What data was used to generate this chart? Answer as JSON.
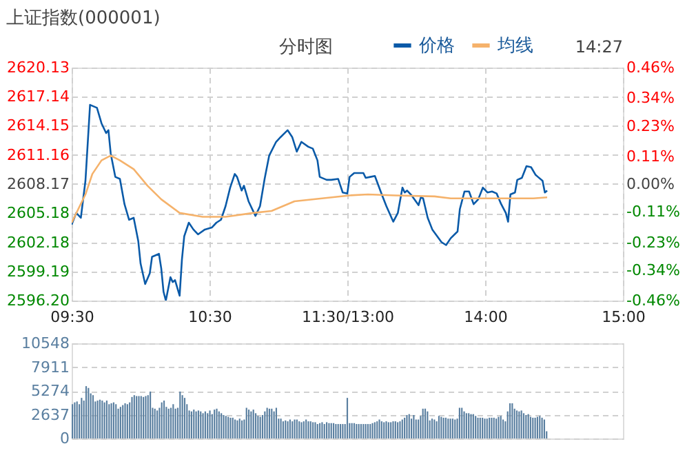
{
  "chart_data": [
    {
      "type": "line",
      "title": "上证指数(000001)",
      "subtitle": "分时图",
      "annotations": [
        "14:27"
      ],
      "legend": "top",
      "grid": true,
      "categories": [
        "09:30",
        null,
        null,
        null,
        null,
        null,
        null,
        null,
        null,
        null,
        null,
        null,
        null,
        null,
        null,
        null,
        null,
        null,
        null,
        null,
        null,
        null,
        null,
        null,
        null,
        null,
        null,
        null,
        null,
        null,
        null,
        null,
        null,
        null,
        null,
        null,
        null,
        null,
        null,
        null,
        null,
        null,
        null,
        null,
        null,
        null,
        null,
        null,
        null,
        null,
        null,
        null,
        null,
        null,
        null,
        null,
        null,
        null,
        null,
        null,
        "10:30",
        null,
        null,
        null,
        null,
        null,
        null,
        null,
        null,
        null,
        null,
        null,
        null,
        null,
        null,
        null,
        null,
        null,
        null,
        null,
        null,
        null,
        null,
        null,
        null,
        null,
        null,
        null,
        null,
        null,
        null,
        null,
        null,
        null,
        null,
        null,
        null,
        null,
        null,
        null,
        null,
        null,
        null,
        null,
        null,
        null,
        null,
        null,
        null,
        null,
        null,
        null,
        null,
        null,
        null,
        null,
        null,
        null,
        null,
        null,
        "11:30/13:00",
        null,
        null,
        null,
        null,
        null,
        null,
        null,
        null,
        null,
        null,
        null,
        null,
        null,
        null,
        null,
        null,
        null,
        null,
        null,
        null,
        null,
        null,
        null,
        null,
        null,
        null,
        null,
        null,
        null,
        null,
        null,
        null,
        null,
        null,
        null,
        null,
        null,
        null,
        null,
        null,
        null,
        null,
        null,
        null,
        null,
        null,
        null,
        null,
        null,
        null,
        null,
        null,
        null,
        null,
        null,
        null,
        null,
        null,
        null,
        "14:00",
        null,
        null,
        null,
        null,
        null,
        null,
        null,
        null,
        null,
        null,
        null,
        null,
        null,
        null,
        null,
        null,
        null,
        null,
        null,
        null,
        null,
        null,
        null,
        null,
        null,
        null,
        null,
        null,
        null,
        null,
        null,
        null,
        null,
        null,
        null,
        null,
        null,
        null,
        null,
        null,
        null,
        null,
        null,
        null,
        null,
        null,
        null,
        null,
        null,
        null,
        null,
        null,
        null,
        null,
        null,
        null,
        null,
        null,
        null,
        "15:00"
      ],
      "ylim": [
        2596.2,
        2620.13
      ],
      "yticks": [
        {
          "value": 2596.2,
          "label": "2596.20"
        },
        {
          "value": 2599.19,
          "label": "2599.19"
        },
        {
          "value": 2602.18,
          "label": "2602.18"
        },
        {
          "value": 2605.18,
          "label": "2605.18"
        },
        {
          "value": 2608.17,
          "label": "2608.17"
        },
        {
          "value": 2611.16,
          "label": "2611.16"
        },
        {
          "value": 2614.15,
          "label": "2614.15"
        },
        {
          "value": 2617.14,
          "label": "2617.14"
        },
        {
          "value": 2620.13,
          "label": "2620.13"
        }
      ],
      "y2lim": [
        -0.46,
        0.46
      ],
      "y2ticks": [
        {
          "value": -0.46,
          "label": "-0.46%"
        },
        {
          "value": -0.34,
          "label": "-0.34%"
        },
        {
          "value": -0.23,
          "label": "-0.23%"
        },
        {
          "value": -0.11,
          "label": "-0.11%"
        },
        {
          "value": 0,
          "label": "0.00%"
        },
        {
          "value": 0.11,
          "label": "0.11%"
        },
        {
          "value": 0.23,
          "label": "0.23%"
        },
        {
          "value": 0.34,
          "label": "0.34%"
        },
        {
          "value": 0.46,
          "label": "0.46%"
        }
      ],
      "series": [
        {
          "name": "价格",
          "color": "#0a5aa8",
          "values": [
            2604.0,
            null,
            2605.2,
            null,
            2604.7,
            null,
            2608.5,
            null,
            2616.3,
            null,
            null,
            2616.0,
            null,
            2614.4,
            null,
            2613.4,
            2613.7,
            2611.3,
            null,
            2608.9,
            null,
            2608.7,
            null,
            2606.1,
            null,
            2604.5,
            null,
            2604.7,
            null,
            2602.3,
            2600.0,
            null,
            2597.9,
            null,
            2599.0,
            2600.7,
            null,
            null,
            2601.0,
            2599.5,
            2597.1,
            2596.2,
            null,
            2598.6,
            2598.1,
            2598.3,
            null,
            2596.7,
            2600.4,
            2602.8,
            null,
            2604.2,
            null,
            2603.5,
            null,
            2603.0,
            null,
            null,
            2603.5,
            null,
            null,
            2603.7,
            null,
            2604.2,
            null,
            2604.5,
            null,
            2605.9,
            null,
            2607.8,
            null,
            2609.2,
            2608.9,
            null,
            2607.5,
            2608.0,
            null,
            2606.4,
            null,
            null,
            2604.9,
            null,
            2605.9,
            null,
            2608.7,
            null,
            2611.1,
            null,
            null,
            2612.5,
            null,
            2613.0,
            null,
            null,
            2613.7,
            null,
            2613.0,
            null,
            2611.5,
            null,
            2612.5,
            null,
            null,
            2612.0,
            null,
            2611.8,
            null,
            2610.6,
            2608.9,
            null,
            null,
            2608.6,
            null,
            2608.6,
            null,
            null,
            2608.7,
            null,
            2607.3,
            null,
            2607.2,
            2608.9,
            null,
            2609.3,
            null,
            null,
            null,
            2609.3,
            2608.8,
            null,
            2608.9,
            null,
            2609.0,
            null,
            null,
            2607.1,
            null,
            2605.9,
            null,
            null,
            2604.3,
            null,
            2605.2,
            null,
            2607.8,
            2607.3,
            2607.5,
            null,
            2607.0,
            null,
            null,
            2606.0,
            2606.8,
            2606.7,
            null,
            2604.7,
            null,
            2603.5,
            null,
            null,
            null,
            2602.2,
            null,
            2601.9,
            null,
            2602.6,
            null,
            null,
            2603.3,
            2605.6,
            null,
            2607.4,
            null,
            2607.4,
            null,
            2606.1,
            null,
            2606.6,
            null,
            2607.8,
            null,
            2607.3,
            null,
            2607.4,
            null,
            2607.2,
            null,
            2606.1,
            null,
            2605.2,
            2604.3,
            2607.1,
            null,
            2607.3,
            2608.6,
            null,
            2608.8,
            null,
            2610.0,
            null,
            2609.9,
            null,
            2609.1,
            2608.9,
            null,
            2608.5,
            2607.3,
            2607.5,
            null,
            null,
            null,
            null,
            null,
            null,
            null,
            null,
            null,
            null,
            null,
            null,
            null,
            null,
            null,
            null,
            null,
            null,
            null,
            null,
            null,
            null,
            null,
            null,
            null,
            null,
            null,
            null,
            null,
            null,
            null,
            null,
            null
          ]
        },
        {
          "name": "均线",
          "color": "#f5b26b",
          "values": [
            2604.2,
            null,
            null,
            null,
            null,
            null,
            2607.1,
            null,
            null,
            2609.2,
            null,
            null,
            null,
            2610.6,
            null,
            null,
            null,
            2611.1,
            null,
            null,
            null,
            2610.6,
            null,
            null,
            null,
            null,
            null,
            2609.7,
            null,
            null,
            null,
            null,
            null,
            2608.0,
            null,
            null,
            null,
            null,
            null,
            2606.6,
            null,
            null,
            null,
            null,
            null,
            null,
            null,
            2605.2,
            null,
            null,
            null,
            null,
            null,
            null,
            null,
            null,
            null,
            2604.8,
            null,
            null,
            null,
            null,
            null,
            null,
            null,
            null,
            null,
            2604.8,
            null,
            null,
            null,
            null,
            null,
            null,
            null,
            null,
            null,
            null,
            null,
            2605.2,
            null,
            null,
            null,
            null,
            null,
            null,
            null,
            2605.4,
            null,
            null,
            null,
            null,
            null,
            null,
            null,
            null,
            null,
            2606.4,
            null,
            null,
            null,
            null,
            null,
            null,
            null,
            null,
            null,
            null,
            null,
            2606.7,
            null,
            null,
            null,
            null,
            null,
            null,
            null,
            null,
            null,
            null,
            null,
            2607.0,
            null,
            null,
            null,
            null,
            null,
            null,
            null,
            2607.1,
            null,
            null,
            null,
            null,
            null,
            null,
            null,
            null,
            null,
            null,
            null,
            2607.0,
            null,
            null,
            null,
            null,
            null,
            null,
            null,
            null,
            null,
            null,
            null,
            null,
            null,
            null,
            null,
            null,
            2606.9,
            null,
            null,
            null,
            null,
            null,
            null,
            2606.7,
            null,
            null,
            null,
            null,
            null,
            null,
            null,
            null,
            null,
            null,
            null,
            null,
            null,
            null,
            null,
            null,
            null,
            null,
            null,
            2606.7,
            null,
            null,
            null,
            null,
            null,
            null,
            null,
            null,
            null,
            null,
            null,
            null,
            null,
            null,
            null,
            2606.7,
            null,
            null,
            null,
            null,
            null,
            2606.8,
            null,
            null,
            null,
            null,
            null,
            null,
            null,
            null,
            null,
            null,
            null,
            null,
            null,
            null,
            null,
            null,
            null,
            null,
            null,
            null,
            null,
            null,
            null,
            null,
            null,
            null,
            null,
            null,
            null,
            null,
            null,
            null,
            null
          ]
        }
      ]
    },
    {
      "type": "bar",
      "color": "#5a7fa0",
      "grid": "y",
      "tick_labels": "y",
      "ylim": [
        0,
        10548
      ],
      "yticks": [
        0,
        2637,
        5274,
        7911,
        10548
      ],
      "categories": [
        null,
        null,
        null,
        null,
        null,
        null,
        null,
        null,
        null,
        null,
        null,
        null,
        null,
        null,
        null,
        null,
        null,
        null,
        null,
        null,
        null,
        null,
        null,
        null,
        null,
        null,
        null,
        null,
        null,
        null,
        null,
        null,
        null,
        null,
        null,
        null,
        null,
        null,
        null,
        null,
        null,
        null,
        null,
        null,
        null,
        null,
        null,
        null,
        null,
        null,
        null,
        null,
        null,
        null,
        null,
        null,
        null,
        null,
        null,
        null,
        null,
        null,
        null,
        null,
        null,
        null,
        null,
        null,
        null,
        null,
        null,
        null,
        null,
        null,
        null,
        null,
        null,
        null,
        null,
        null,
        null,
        null,
        null,
        null,
        null,
        null,
        null,
        null,
        null,
        null,
        null,
        null,
        null,
        null,
        null,
        null,
        null,
        null,
        null,
        null,
        null,
        null,
        null,
        null,
        null,
        null,
        null,
        null,
        null,
        null,
        null,
        null,
        null,
        null,
        null,
        null,
        null,
        null,
        null,
        null,
        null,
        null,
        null,
        null,
        null,
        null,
        null,
        null,
        null,
        null,
        null,
        null,
        null,
        null,
        null,
        null,
        null,
        null,
        null,
        null,
        null,
        null,
        null,
        null,
        null,
        null,
        null,
        null,
        null,
        null,
        null,
        null,
        null,
        null,
        null,
        null,
        null,
        null,
        null,
        null,
        null,
        null,
        null,
        null,
        null,
        null,
        null,
        null,
        null,
        null,
        null,
        null,
        null,
        null,
        null,
        null,
        null,
        null,
        null,
        null,
        null,
        null,
        null,
        null,
        null,
        null,
        null,
        null,
        null,
        null,
        null,
        null,
        null,
        null,
        null,
        null,
        null,
        null,
        null,
        null,
        null,
        null,
        null,
        null,
        null,
        null,
        null,
        null,
        null,
        null,
        null,
        null,
        null,
        null,
        null,
        null,
        null,
        null,
        null,
        null,
        null,
        null,
        null,
        null,
        null,
        null,
        null,
        null,
        null,
        null,
        null,
        null,
        null,
        null,
        null,
        null,
        null,
        null,
        null,
        null,
        null
      ],
      "values": [
        3800,
        4000,
        4100,
        3800,
        4500,
        4200,
        5800,
        5600,
        5000,
        4800,
        4100,
        4200,
        4300,
        4200,
        4000,
        4200,
        3800,
        3900,
        4000,
        3800,
        3300,
        3500,
        3700,
        3900,
        3800,
        4000,
        4600,
        4800,
        4700,
        4700,
        4700,
        4600,
        4700,
        4800,
        5200,
        3400,
        3300,
        3100,
        3400,
        4000,
        4200,
        3500,
        3300,
        3400,
        3800,
        3300,
        3400,
        5200,
        4800,
        4500,
        3800,
        3100,
        3000,
        3200,
        3000,
        3100,
        3000,
        2800,
        3000,
        2800,
        3100,
        2700,
        3200,
        3300,
        3000,
        2800,
        2600,
        2500,
        2400,
        2300,
        2300,
        2100,
        2000,
        2200,
        2000,
        2100,
        3400,
        3200,
        3000,
        3200,
        2800,
        2500,
        2400,
        2600,
        3000,
        3400,
        3300,
        3300,
        3000,
        3400,
        2200,
        2200,
        1900,
        2000,
        1900,
        2100,
        1900,
        2100,
        2100,
        1900,
        1800,
        1900,
        2100,
        1900,
        1900,
        1800,
        1800,
        1600,
        1700,
        1800,
        1600,
        1800,
        1700,
        1700,
        1700,
        1600,
        1600,
        1600,
        1600,
        1600,
        4500,
        1700,
        1700,
        1700,
        1600,
        1600,
        1600,
        1600,
        1600,
        1600,
        1600,
        1700,
        1800,
        1900,
        2100,
        1900,
        1800,
        1900,
        1800,
        1800,
        1900,
        1900,
        1800,
        1900,
        2100,
        2300,
        2600,
        2700,
        2200,
        2600,
        2100,
        2100,
        2500,
        3300,
        3300,
        3000,
        2000,
        2200,
        2100,
        1900,
        2500,
        2400,
        2300,
        2300,
        2200,
        2200,
        2200,
        2100,
        2200,
        3400,
        3400,
        3000,
        2800,
        2800,
        2700,
        2700,
        2500,
        2300,
        2300,
        2300,
        2200,
        2200,
        2300,
        2300,
        2300,
        2200,
        2400,
        2500,
        2100,
        1900,
        3000,
        3900,
        3900,
        3300,
        3100,
        3000,
        3100,
        2800,
        2600,
        2700,
        2400,
        2300,
        2300,
        2400,
        2500,
        2300,
        2100,
        800,
        null,
        null,
        null,
        null,
        null,
        null,
        null,
        null,
        null,
        null,
        null,
        null,
        null,
        null,
        null,
        null,
        null,
        null,
        null,
        null,
        null,
        null,
        null,
        null,
        null,
        null,
        null,
        null,
        null,
        null,
        null,
        null,
        null
      ]
    }
  ]
}
